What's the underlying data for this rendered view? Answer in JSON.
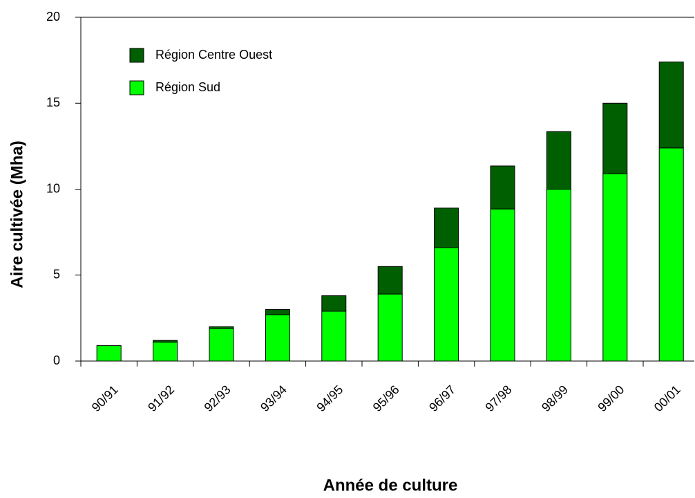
{
  "chart_data": {
    "type": "stacked_bar",
    "xlabel": "Année de culture",
    "ylabel": "Aire cultivée (Mha)",
    "categories": [
      "90/91",
      "91/92",
      "92/93",
      "93/94",
      "94/95",
      "95/96",
      "96/97",
      "97/98",
      "98/99",
      "99/00",
      "00/01"
    ],
    "series": [
      {
        "name": "Région Sud",
        "color": "#00ff00",
        "values": [
          0.9,
          1.1,
          1.9,
          2.7,
          2.9,
          3.9,
          6.6,
          8.85,
          10.0,
          10.9,
          12.4
        ]
      },
      {
        "name": "Région Centre Ouest",
        "color": "#005f00",
        "values": [
          0,
          0.1,
          0.1,
          0.3,
          0.9,
          1.6,
          2.3,
          2.5,
          3.35,
          4.1,
          5.0
        ]
      }
    ],
    "ylim": [
      0,
      20
    ],
    "yticks": [
      0,
      5,
      10,
      15,
      20
    ],
    "legend": "upper left"
  }
}
